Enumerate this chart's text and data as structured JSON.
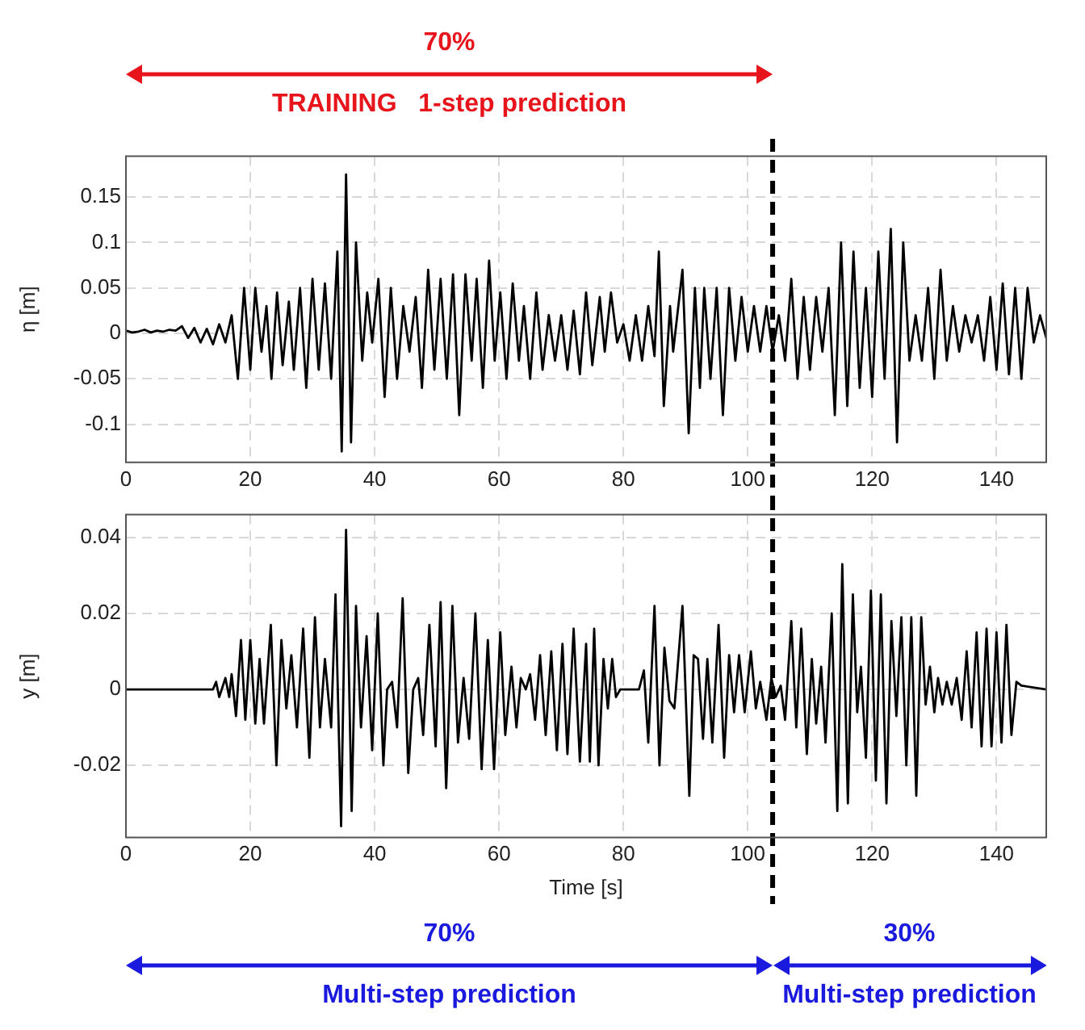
{
  "chart_data": [
    {
      "type": "line",
      "ylabel": "η [m]",
      "annotations": [
        "70%",
        "TRAINING   1-step prediction"
      ],
      "xlim": [
        0,
        148
      ],
      "xticks": [
        0,
        20,
        40,
        60,
        80,
        100,
        120,
        140
      ],
      "ylim": [
        -0.142,
        0.195
      ],
      "yticks": [
        -0.1,
        -0.05,
        0,
        0.05,
        0.1,
        0.15
      ],
      "grid": true,
      "marker": "none",
      "line_style": "solid",
      "ref_lines": [
        {
          "axis": "x",
          "value": 104,
          "color": "#000000",
          "line_style": "dashed"
        }
      ],
      "series": [
        {
          "color": "#000000",
          "x": [
            0,
            1,
            2,
            3,
            4,
            5,
            6,
            7,
            8,
            9,
            10,
            11,
            12,
            13,
            14,
            15,
            16,
            17,
            18,
            19,
            20,
            20.8,
            21.8,
            22.6,
            23.4,
            24.3,
            25.2,
            26.2,
            27,
            28,
            29,
            30,
            31,
            32,
            33,
            34,
            34.7,
            35.4,
            36.2,
            37,
            38,
            38.8,
            39.6,
            40.6,
            41.6,
            42.6,
            43.6,
            44.6,
            45.6,
            46.6,
            47.6,
            48.6,
            49.6,
            50.6,
            51.6,
            52.6,
            53.6,
            54.6,
            55.6,
            56.4,
            57.4,
            58.4,
            59.3,
            60.2,
            61.2,
            62.2,
            63.2,
            64,
            65,
            66,
            67,
            68,
            69,
            70,
            71,
            72,
            73,
            74,
            75,
            76.2,
            77,
            78,
            79,
            80,
            81,
            82,
            83,
            84,
            85,
            85.7,
            86.5,
            87.5,
            88,
            89.5,
            90.5,
            91.5,
            92.3,
            93,
            94,
            95,
            96,
            97,
            98,
            99,
            100,
            101,
            102,
            103,
            104,
            105,
            106,
            107,
            108,
            109,
            110,
            111,
            112,
            113,
            114,
            115,
            116,
            117,
            118,
            119,
            120,
            121,
            122,
            123,
            124,
            125,
            126,
            127,
            128,
            129,
            130,
            131,
            132,
            133,
            134,
            135,
            136,
            137,
            138,
            139,
            140,
            141,
            142,
            143,
            144,
            145,
            146,
            147,
            148
          ],
          "values": [
            0.003,
            0.001,
            0.002,
            0.004,
            0.001,
            0.003,
            0.002,
            0.004,
            0.003,
            0.008,
            -0.005,
            0.006,
            -0.01,
            0.005,
            -0.012,
            0.01,
            -0.01,
            0.02,
            -0.05,
            0.05,
            -0.04,
            0.05,
            -0.02,
            0.03,
            -0.05,
            0.045,
            -0.035,
            0.035,
            -0.04,
            0.05,
            -0.06,
            0.06,
            -0.04,
            0.055,
            -0.05,
            0.09,
            -0.13,
            0.175,
            -0.12,
            0.1,
            -0.03,
            0.045,
            -0.01,
            0.06,
            -0.07,
            0.05,
            -0.05,
            0.03,
            -0.02,
            0.04,
            -0.06,
            0.07,
            -0.04,
            0.06,
            -0.05,
            0.065,
            -0.09,
            0.065,
            -0.03,
            0.06,
            -0.06,
            0.08,
            -0.03,
            0.045,
            -0.05,
            0.055,
            -0.03,
            0.03,
            -0.05,
            0.045,
            -0.04,
            0.02,
            -0.03,
            0.02,
            -0.04,
            0.025,
            -0.045,
            0.045,
            -0.035,
            0.04,
            -0.02,
            0.045,
            -0.01,
            0.01,
            -0.03,
            0.02,
            -0.03,
            0.03,
            -0.025,
            0.09,
            -0.08,
            0.03,
            -0.02,
            0.07,
            -0.11,
            0.05,
            -0.06,
            0.05,
            -0.05,
            0.05,
            -0.09,
            0.05,
            -0.03,
            0.04,
            -0.02,
            0.03,
            -0.02,
            0.03,
            -0.02,
            0.02,
            -0.03,
            0.06,
            -0.05,
            0.04,
            -0.04,
            0.04,
            -0.02,
            0.05,
            -0.09,
            0.1,
            -0.08,
            0.09,
            -0.06,
            0.05,
            -0.07,
            0.09,
            -0.05,
            0.115,
            -0.12,
            0.1,
            -0.03,
            0.02,
            -0.03,
            0.05,
            -0.05,
            0.07,
            -0.03,
            0.03,
            -0.02,
            0.02,
            -0.01,
            0.02,
            -0.03,
            0.04,
            -0.04,
            0.055,
            -0.045,
            0.05,
            -0.05,
            0.05,
            -0.01,
            0.02,
            -0.005
          ]
        }
      ]
    },
    {
      "type": "line",
      "xlabel": "Time [s]",
      "ylabel": "y [m]",
      "annotations": [
        "70%",
        "Multi-step prediction",
        "30%",
        "Multi-step prediction"
      ],
      "xlim": [
        0,
        148
      ],
      "xticks": [
        0,
        20,
        40,
        60,
        80,
        100,
        120,
        140
      ],
      "ylim": [
        -0.039,
        0.046
      ],
      "yticks": [
        -0.02,
        0,
        0.02,
        0.04
      ],
      "grid": true,
      "marker": "none",
      "line_style": "solid",
      "ref_lines": [
        {
          "axis": "x",
          "value": 104,
          "color": "#000000",
          "line_style": "dashed"
        }
      ],
      "series": [
        {
          "color": "#000000",
          "x": [
            0,
            7,
            14,
            14.5,
            15,
            16,
            16.6,
            17,
            17.7,
            18.5,
            19.2,
            20,
            20.8,
            21.5,
            22.2,
            23.3,
            24.2,
            25,
            25.8,
            26.6,
            27.5,
            28.5,
            29.5,
            30.4,
            31.2,
            32,
            33,
            33.7,
            34.6,
            35.4,
            36.3,
            37,
            37.8,
            38.7,
            39.6,
            40.5,
            41.4,
            42,
            42.8,
            43.6,
            44.5,
            45.4,
            46.2,
            47,
            47.8,
            48.8,
            49.8,
            50.6,
            51.5,
            52.5,
            53.4,
            54.3,
            55.2,
            56.2,
            57.2,
            58.2,
            59.2,
            60.2,
            61,
            62,
            62.8,
            63.5,
            64.3,
            65,
            65.8,
            66.6,
            67.5,
            68.4,
            69.3,
            70.2,
            71,
            72,
            73,
            74,
            74.6,
            75.3,
            76,
            76.8,
            77.5,
            78.2,
            78.8,
            79.5,
            81,
            82.5,
            83.3,
            84,
            85,
            85.8,
            86.6,
            87.4,
            88.2,
            89.5,
            90.6,
            91.3,
            92,
            92.8,
            93.5,
            94.3,
            95.3,
            96.2,
            97,
            97.8,
            98.6,
            99.5,
            100.5,
            101.3,
            102,
            103,
            103.8,
            104.5,
            105.3,
            106,
            107,
            107.8,
            108.6,
            109.5,
            110.3,
            111,
            111.8,
            112.5,
            113.5,
            114.4,
            115.2,
            116.1,
            116.9,
            117.6,
            118.2,
            119,
            119.8,
            120.6,
            121.4,
            122.3,
            123.1,
            123.9,
            124.7,
            125.5,
            126.3,
            127.1,
            127.9,
            128.6,
            129.3,
            130,
            130.6,
            131.3,
            132,
            132.8,
            133.6,
            134.4,
            135.2,
            136,
            136.8,
            137.6,
            138.4,
            139.2,
            140,
            140.8,
            141.6,
            142.4,
            143.2,
            144,
            148
          ],
          "values": [
            0,
            0,
            0,
            0.002,
            -0.002,
            0.003,
            -0.002,
            0.004,
            -0.007,
            0.013,
            -0.008,
            0.013,
            -0.009,
            0.008,
            -0.009,
            0.017,
            -0.02,
            0.013,
            -0.005,
            0.009,
            -0.01,
            0.016,
            -0.018,
            0.019,
            -0.01,
            0.008,
            -0.01,
            0.025,
            -0.036,
            0.042,
            -0.032,
            0.022,
            -0.01,
            0.014,
            -0.016,
            0.02,
            -0.02,
            0,
            0.002,
            -0.01,
            0.024,
            -0.022,
            0,
            0.003,
            -0.012,
            0.017,
            -0.015,
            0.023,
            -0.026,
            0.022,
            -0.014,
            0.003,
            -0.013,
            0.02,
            -0.021,
            0.013,
            -0.021,
            0.015,
            -0.012,
            0.006,
            -0.01,
            0.003,
            0,
            0.004,
            -0.008,
            0.009,
            -0.012,
            0.01,
            -0.016,
            0.012,
            -0.017,
            0.016,
            -0.019,
            0.012,
            -0.019,
            0.016,
            -0.02,
            0.008,
            -0.005,
            0.008,
            -0.002,
            0,
            0,
            0,
            0.005,
            -0.014,
            0.022,
            -0.02,
            0.011,
            -0.003,
            -0.005,
            0.022,
            -0.028,
            0.009,
            0.008,
            -0.013,
            0.008,
            -0.014,
            0.017,
            -0.018,
            0.009,
            -0.006,
            0.009,
            -0.006,
            0.01,
            -0.005,
            0.002,
            -0.008,
            0.003,
            -0.002,
            0.001,
            -0.008,
            0.018,
            -0.01,
            0.016,
            -0.017,
            0.008,
            -0.009,
            0.006,
            -0.014,
            0.02,
            -0.032,
            0.033,
            -0.03,
            0.025,
            -0.006,
            0.006,
            -0.018,
            0.026,
            -0.024,
            0.025,
            -0.03,
            0.018,
            -0.007,
            0.019,
            -0.02,
            0.019,
            -0.028,
            0.019,
            -0.004,
            0.006,
            -0.006,
            0.003,
            -0.004,
            0.002,
            -0.004,
            0.003,
            -0.008,
            0.01,
            -0.01,
            0.015,
            -0.015,
            0.016,
            -0.015,
            0.015,
            -0.014,
            0.017,
            -0.012,
            0.002,
            0.001,
            0
          ]
        }
      ]
    }
  ]
}
